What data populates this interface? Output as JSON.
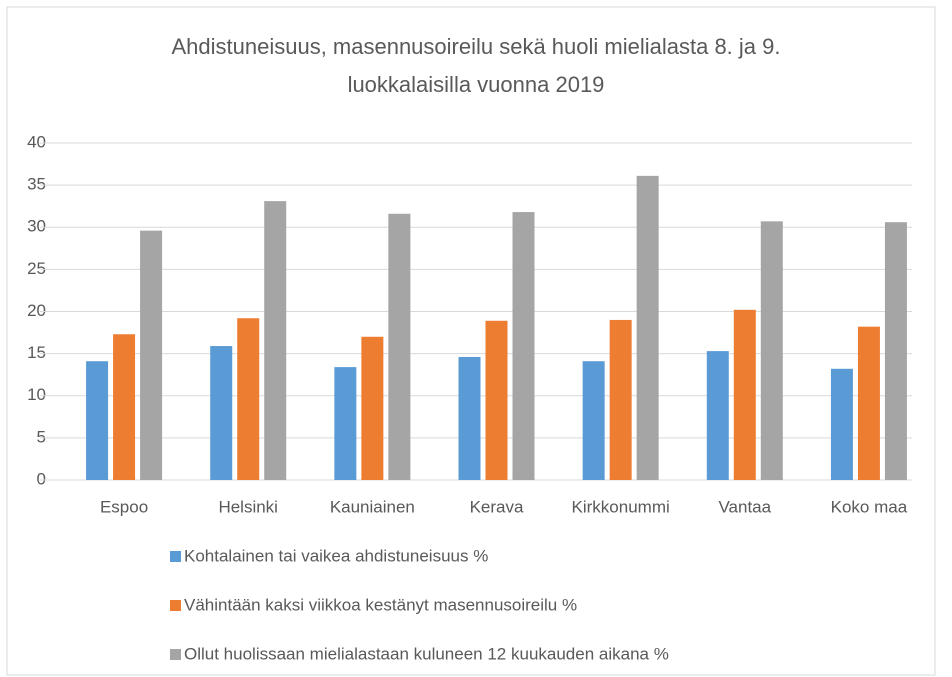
{
  "chart_data": {
    "type": "bar",
    "title": "Ahdistuneisuus, masennusoireilu sekä huoli mielialasta 8. ja 9. luokkalaisilla vuonna 2019",
    "categories": [
      "Espoo",
      "Helsinki",
      "Kauniainen",
      "Kerava",
      "Kirkkonummi",
      "Vantaa",
      "Koko maa"
    ],
    "series": [
      {
        "name": "Kohtalainen tai vaikea ahdistuneisuus %",
        "color": "#5b9bd5",
        "values": [
          14.1,
          15.9,
          13.4,
          14.6,
          14.1,
          15.3,
          13.2
        ]
      },
      {
        "name": "Vähintään kaksi viikkoa kestänyt masennusoireilu %",
        "color": "#ed7d31",
        "values": [
          17.3,
          19.2,
          17.0,
          18.9,
          19.0,
          20.2,
          18.2
        ]
      },
      {
        "name": "Ollut huolissaan mielialastaan kuluneen 12 kuukauden aikana %",
        "color": "#a5a5a5",
        "values": [
          29.6,
          33.1,
          31.6,
          31.8,
          36.1,
          30.7,
          30.6
        ]
      }
    ],
    "ylim": [
      0,
      40
    ],
    "yticks": [
      0,
      5,
      10,
      15,
      20,
      25,
      30,
      35,
      40
    ],
    "grid": true,
    "legend": "bottom"
  }
}
